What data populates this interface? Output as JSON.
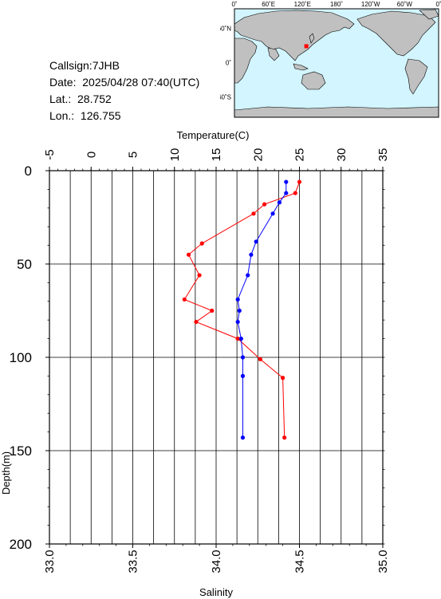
{
  "info": {
    "callsign": "Callsign:7JHB",
    "date": "Date:  2025/04/28 07:40(UTC)",
    "lat": "Lat.:  28.752",
    "lon": "Lon.:  126.755"
  },
  "map": {
    "lon_labels": [
      "0˚",
      "60˚E",
      "120˚E",
      "180˚",
      "120˚W",
      "60˚W",
      "0˚"
    ],
    "lat_labels": [
      "60˚N",
      "0˚",
      "60˚S"
    ],
    "ocean_color": "#d2f5ff",
    "land_color": "#c0c0c0",
    "marker_color": "#ff0000",
    "marker": {
      "lat": 28.752,
      "lon": 126.755
    }
  },
  "chart_data": {
    "type": "line",
    "top_axis_label": "Temperature(C)",
    "xlabel": "Salinity",
    "ylabel": "Depth(m)",
    "temperature_ticks": [
      "-5",
      "0",
      "5",
      "10",
      "15",
      "20",
      "25",
      "30",
      "35"
    ],
    "temperature_range": [
      -5,
      35
    ],
    "salinity_ticks": [
      "33.0",
      "33.5",
      "34.0",
      "34.5",
      "35.0"
    ],
    "salinity_range": [
      33.0,
      35.0
    ],
    "depth_ticks": [
      "0",
      "50",
      "100",
      "150",
      "200"
    ],
    "depth_range": [
      0,
      200
    ],
    "grid": true,
    "series": [
      {
        "color": "#ff0000",
        "points": [
          {
            "depth": 6,
            "temperature": 25.0
          },
          {
            "depth": 12,
            "temperature": 24.5
          },
          {
            "depth": 18,
            "temperature": 20.8
          },
          {
            "depth": 23,
            "temperature": 19.5
          },
          {
            "depth": 39,
            "temperature": 13.3
          },
          {
            "depth": 45,
            "temperature": 11.7
          },
          {
            "depth": 56,
            "temperature": 13.0
          },
          {
            "depth": 69,
            "temperature": 11.2
          },
          {
            "depth": 75,
            "temperature": 14.5
          },
          {
            "depth": 81,
            "temperature": 12.6
          },
          {
            "depth": 90,
            "temperature": 17.6
          },
          {
            "depth": 101,
            "temperature": 20.3
          },
          {
            "depth": 111,
            "temperature": 23.0
          },
          {
            "depth": 143,
            "temperature": 23.2
          }
        ]
      },
      {
        "color": "#0000ff",
        "points": [
          {
            "depth": 6,
            "salinity": 34.42
          },
          {
            "depth": 12,
            "salinity": 34.42
          },
          {
            "depth": 17,
            "salinity": 34.38
          },
          {
            "depth": 23,
            "salinity": 34.34
          },
          {
            "depth": 38,
            "salinity": 34.24
          },
          {
            "depth": 45,
            "salinity": 34.21
          },
          {
            "depth": 56,
            "salinity": 34.19
          },
          {
            "depth": 69,
            "salinity": 34.13
          },
          {
            "depth": 75,
            "salinity": 34.14
          },
          {
            "depth": 81,
            "salinity": 34.13
          },
          {
            "depth": 90,
            "salinity": 34.15
          },
          {
            "depth": 100,
            "salinity": 34.16
          },
          {
            "depth": 110,
            "salinity": 34.16
          },
          {
            "depth": 143,
            "salinity": 34.16
          }
        ]
      }
    ]
  }
}
